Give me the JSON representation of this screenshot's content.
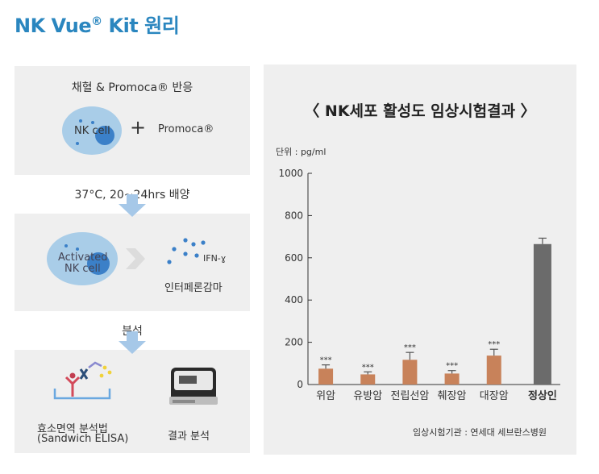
{
  "title_main": "NK Vue",
  "title_reg": "®",
  "title_rest": " Kit 원리",
  "steps": {
    "step1_label": "채혈 & Promoca® 반응",
    "nk_cell": "NK cell",
    "plus": "+",
    "promoca": "Promoca®",
    "step2_label": "37°C, 20~24hrs 배양",
    "activated_line1": "Activated",
    "activated_line2": "NK cell",
    "ifn": "IFN-ɣ",
    "interferon": "인터페론감마",
    "step3_label": "분석",
    "elisa_line1": "효소면역 분석법",
    "elisa_line2": "(Sandwich ELISA)",
    "result_analysis": "결과 분석"
  },
  "chart_title": "〈 NK세포 활성도 임상시험결과 〉",
  "unit": "단위 : pg/ml",
  "source": "임상시험기관 : 연세대 세브란스병원",
  "colors": {
    "title": "#2a86bf",
    "bar_patient": "#c8825a",
    "bar_normal": "#6b6b6b",
    "cell": "#a9cde8",
    "nucleus": "#3b80c8",
    "arrow": "#a6c8e8"
  },
  "chart_data": {
    "type": "bar",
    "categories": [
      "위암",
      "유방암",
      "전립선암",
      "췌장암",
      "대장암",
      "정상인"
    ],
    "values": [
      75,
      48,
      117,
      52,
      137,
      665
    ],
    "errors": [
      18,
      12,
      35,
      14,
      30,
      28
    ],
    "significance": [
      "***",
      "***",
      "***",
      "***",
      "***",
      ""
    ],
    "ylim": [
      0,
      1000
    ],
    "yticks": [
      0,
      200,
      400,
      600,
      800,
      1000
    ],
    "ylabel": "단위 : pg/ml",
    "title": "〈 NK세포 활성도 임상시험결과 〉",
    "grid": false
  }
}
